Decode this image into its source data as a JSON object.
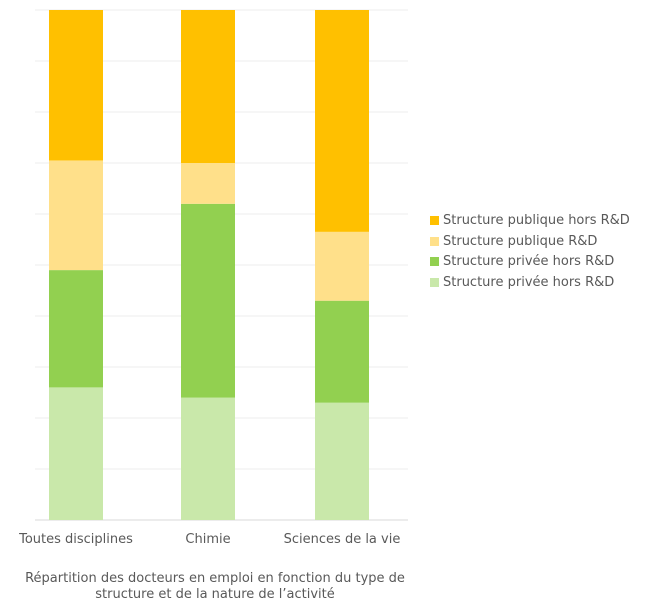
{
  "chart_data": {
    "type": "bar",
    "stacked": true,
    "categories": [
      "Toutes disciplines",
      "Chimie",
      "Sciences de la vie"
    ],
    "series": [
      {
        "name": "Structure privée hors R&D",
        "color": "#c9e8aa",
        "values": [
          26,
          24,
          23
        ]
      },
      {
        "name": "Structure privée hors R&D",
        "color": "#92d050",
        "values": [
          23,
          38,
          20
        ]
      },
      {
        "name": "Structure publique R&D",
        "color": "#ffe08a",
        "values": [
          21.5,
          8,
          13.5
        ]
      },
      {
        "name": "Structure publique hors R&D",
        "color": "#ffc000",
        "values": [
          29.5,
          30,
          43.5
        ]
      }
    ],
    "ylim": [
      0,
      100
    ],
    "grid": true,
    "legend_position": "right",
    "caption": "Répartition des docteurs en emploi en fonction du type de structure et de la nature de l’activité"
  }
}
